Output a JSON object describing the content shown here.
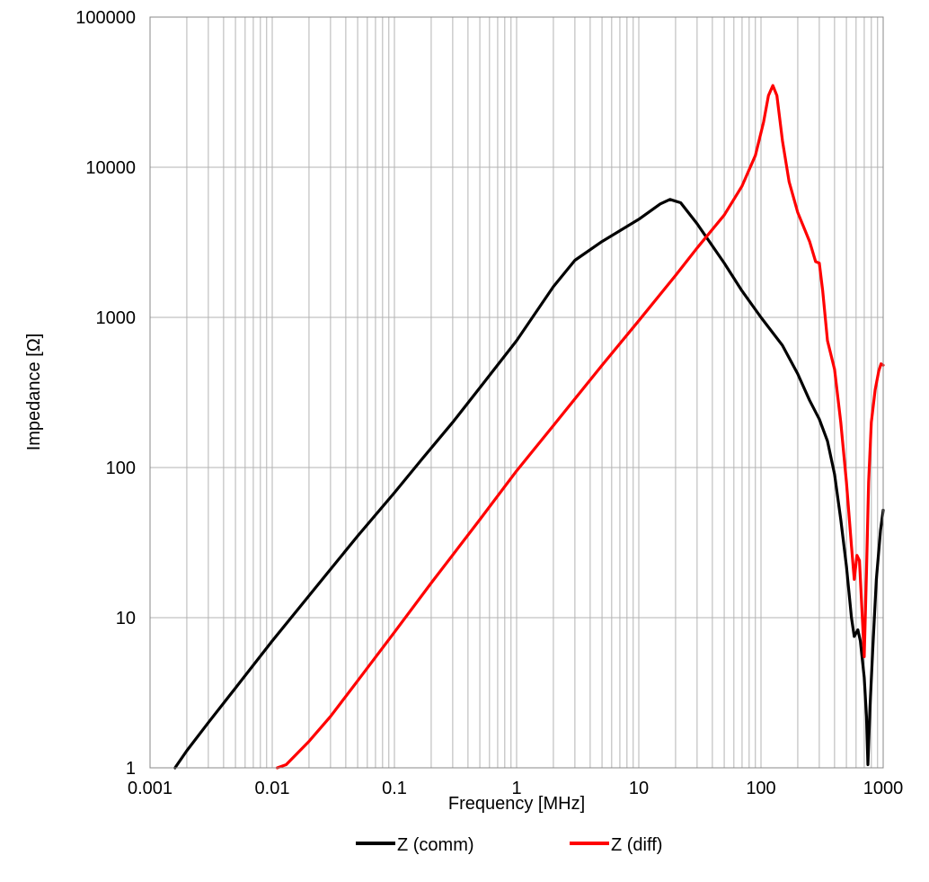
{
  "chart_data": {
    "type": "line",
    "xscale": "log",
    "yscale": "log",
    "xlim": [
      0.001,
      1000
    ],
    "ylim": [
      1,
      100000
    ],
    "xlabel": "Frequency [MHz]",
    "ylabel": "Impedance [Ω]",
    "x_tick_labels": [
      "0.001",
      "0.01",
      "0.1",
      "1",
      "10",
      "100",
      "1000"
    ],
    "y_tick_labels": [
      "1",
      "10",
      "100",
      "1000",
      "10000",
      "100000"
    ],
    "grid": true,
    "legend_position": "bottom",
    "series": [
      {
        "name": "Z (comm)",
        "color": "#000000",
        "points": [
          [
            0.0016,
            1
          ],
          [
            0.002,
            1.3
          ],
          [
            0.003,
            2
          ],
          [
            0.005,
            3.4
          ],
          [
            0.01,
            7
          ],
          [
            0.02,
            14
          ],
          [
            0.05,
            35
          ],
          [
            0.1,
            68
          ],
          [
            0.17,
            115
          ],
          [
            0.3,
            200
          ],
          [
            0.5,
            340
          ],
          [
            1,
            700
          ],
          [
            2,
            1600
          ],
          [
            3,
            2400
          ],
          [
            5,
            3200
          ],
          [
            10,
            4500
          ],
          [
            15,
            5700
          ],
          [
            18,
            6100
          ],
          [
            22,
            5800
          ],
          [
            30,
            4200
          ],
          [
            50,
            2300
          ],
          [
            70,
            1500
          ],
          [
            100,
            1000
          ],
          [
            150,
            650
          ],
          [
            200,
            420
          ],
          [
            250,
            280
          ],
          [
            300,
            210
          ],
          [
            350,
            150
          ],
          [
            400,
            90
          ],
          [
            450,
            45
          ],
          [
            500,
            22
          ],
          [
            550,
            10
          ],
          [
            580,
            7.5
          ],
          [
            620,
            8.3
          ],
          [
            650,
            7
          ],
          [
            700,
            4
          ],
          [
            730,
            2.2
          ],
          [
            750,
            1.05
          ],
          [
            780,
            2.5
          ],
          [
            820,
            6
          ],
          [
            880,
            18
          ],
          [
            950,
            38
          ],
          [
            1000,
            52
          ]
        ]
      },
      {
        "name": "Z (diff)",
        "color": "#ff0000",
        "points": [
          [
            0.011,
            1
          ],
          [
            0.013,
            1.05
          ],
          [
            0.02,
            1.5
          ],
          [
            0.03,
            2.2
          ],
          [
            0.05,
            3.8
          ],
          [
            0.1,
            8
          ],
          [
            0.2,
            17
          ],
          [
            0.5,
            45
          ],
          [
            1,
            95
          ],
          [
            2,
            190
          ],
          [
            5,
            480
          ],
          [
            10,
            950
          ],
          [
            20,
            1900
          ],
          [
            30,
            2900
          ],
          [
            50,
            4800
          ],
          [
            70,
            7500
          ],
          [
            90,
            12000
          ],
          [
            105,
            20000
          ],
          [
            115,
            30000
          ],
          [
            125,
            35000
          ],
          [
            135,
            30000
          ],
          [
            150,
            15000
          ],
          [
            170,
            8000
          ],
          [
            200,
            5000
          ],
          [
            250,
            3200
          ],
          [
            280,
            2350
          ],
          [
            300,
            2300
          ],
          [
            320,
            1500
          ],
          [
            350,
            700
          ],
          [
            400,
            450
          ],
          [
            450,
            200
          ],
          [
            500,
            80
          ],
          [
            550,
            30
          ],
          [
            580,
            18
          ],
          [
            610,
            26
          ],
          [
            640,
            24
          ],
          [
            680,
            9
          ],
          [
            700,
            5.5
          ],
          [
            730,
            20
          ],
          [
            760,
            80
          ],
          [
            800,
            200
          ],
          [
            860,
            330
          ],
          [
            920,
            440
          ],
          [
            960,
            490
          ],
          [
            1000,
            480
          ]
        ]
      }
    ]
  }
}
